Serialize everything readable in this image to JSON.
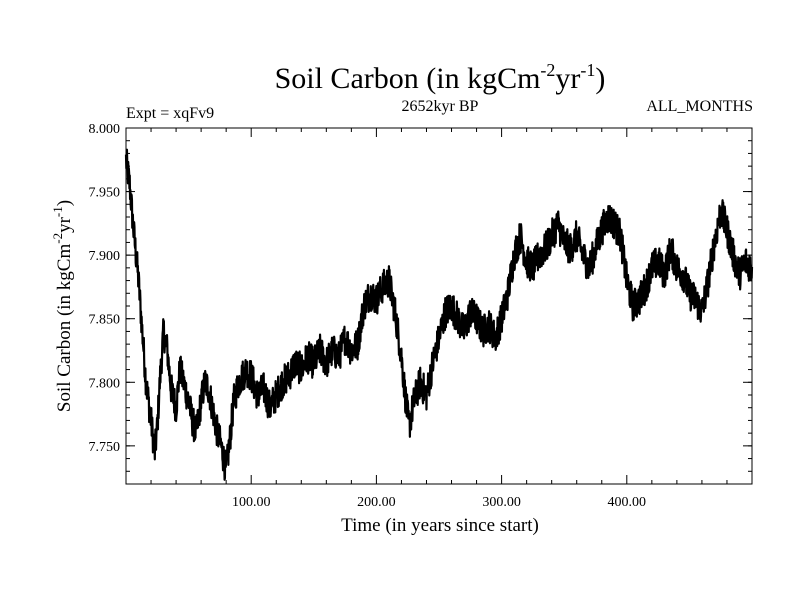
{
  "chart_data": {
    "type": "line",
    "title": "Soil Carbon (in kgCm",
    "title_sup1": "-2",
    "title_mid": "yr",
    "title_sup2": "-1",
    "title_end": ")",
    "left_label": "Expt = xqFv9",
    "center_label": "2652kyr BP",
    "right_label": "ALL_MONTHS",
    "xlabel": "Time (in years since start)",
    "ylabel_main": "Soil Carbon (in kgCm",
    "ylabel_sup1": "-2",
    "ylabel_mid": "yr",
    "ylabel_sup2": "-1",
    "ylabel_end": ")",
    "xlim": [
      0,
      500
    ],
    "ylim": [
      7.72,
      8.0
    ],
    "xticks": [
      {
        "value": 100,
        "label": "100.00"
      },
      {
        "value": 200,
        "label": "200.00"
      },
      {
        "value": 300,
        "label": "300.00"
      },
      {
        "value": 400,
        "label": "400.00"
      }
    ],
    "yticks": [
      {
        "value": 7.75,
        "label": "7.750"
      },
      {
        "value": 7.8,
        "label": "7.800"
      },
      {
        "value": 7.85,
        "label": "7.850"
      },
      {
        "value": 7.9,
        "label": "7.900"
      },
      {
        "value": 7.95,
        "label": "7.950"
      },
      {
        "value": 8.0,
        "label": "8.000"
      }
    ],
    "line_color": "#000000",
    "series": [
      {
        "name": "Soil Carbon",
        "x": [
          0,
          3,
          6,
          10,
          13,
          16,
          20,
          23,
          25,
          27,
          30,
          33,
          36,
          40,
          43,
          46,
          50,
          53,
          56,
          60,
          63,
          66,
          70,
          73,
          76,
          78,
          80,
          83,
          86,
          90,
          93,
          96,
          100,
          105,
          110,
          115,
          120,
          125,
          130,
          135,
          140,
          145,
          150,
          155,
          160,
          165,
          170,
          175,
          180,
          185,
          190,
          195,
          200,
          205,
          210,
          215,
          220,
          223,
          226,
          230,
          235,
          240,
          245,
          250,
          255,
          260,
          265,
          270,
          275,
          280,
          285,
          290,
          295,
          300,
          305,
          310,
          315,
          320,
          325,
          330,
          335,
          340,
          345,
          350,
          355,
          360,
          365,
          370,
          375,
          380,
          385,
          390,
          395,
          400,
          405,
          410,
          415,
          420,
          425,
          430,
          435,
          440,
          445,
          450,
          455,
          460,
          465,
          470,
          475,
          480,
          485,
          490,
          495,
          500
        ],
        "y": [
          7.975,
          7.955,
          7.92,
          7.88,
          7.84,
          7.8,
          7.77,
          7.745,
          7.765,
          7.8,
          7.84,
          7.825,
          7.795,
          7.78,
          7.81,
          7.8,
          7.785,
          7.77,
          7.76,
          7.785,
          7.8,
          7.795,
          7.775,
          7.76,
          7.75,
          7.74,
          7.73,
          7.755,
          7.785,
          7.8,
          7.805,
          7.81,
          7.805,
          7.79,
          7.795,
          7.78,
          7.79,
          7.8,
          7.805,
          7.815,
          7.81,
          7.82,
          7.815,
          7.825,
          7.815,
          7.825,
          7.82,
          7.835,
          7.825,
          7.83,
          7.86,
          7.87,
          7.865,
          7.875,
          7.88,
          7.855,
          7.82,
          7.79,
          7.765,
          7.785,
          7.8,
          7.79,
          7.815,
          7.835,
          7.855,
          7.86,
          7.85,
          7.84,
          7.855,
          7.85,
          7.84,
          7.845,
          7.835,
          7.85,
          7.87,
          7.9,
          7.915,
          7.895,
          7.89,
          7.9,
          7.905,
          7.915,
          7.925,
          7.91,
          7.905,
          7.915,
          7.9,
          7.89,
          7.905,
          7.92,
          7.93,
          7.925,
          7.915,
          7.88,
          7.86,
          7.865,
          7.875,
          7.89,
          7.895,
          7.885,
          7.905,
          7.89,
          7.885,
          7.87,
          7.865,
          7.855,
          7.88,
          7.91,
          7.935,
          7.92,
          7.9,
          7.885,
          7.895,
          7.89
        ]
      }
    ]
  }
}
